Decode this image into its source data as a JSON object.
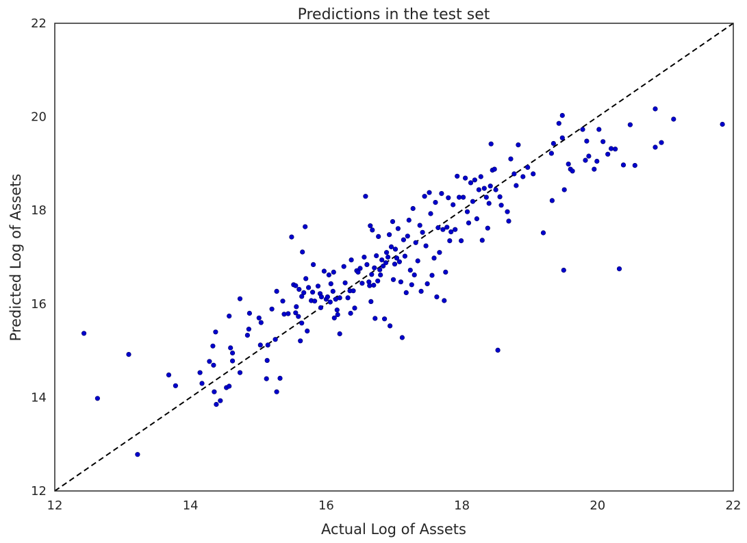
{
  "chart_data": {
    "type": "scatter",
    "title": "Predictions in the test set",
    "xlabel": "Actual Log of Assets",
    "ylabel": "Predicted Log of Assets",
    "xlim": [
      12,
      22
    ],
    "ylim": [
      12,
      22
    ],
    "xticks": [
      "12",
      "14",
      "16",
      "18",
      "20",
      "22"
    ],
    "yticks": [
      "12",
      "14",
      "16",
      "18",
      "20",
      "22"
    ],
    "grid": false,
    "reference_line": {
      "style": "dashed",
      "color": "#000000",
      "from": [
        12,
        12
      ],
      "to": [
        22,
        22
      ]
    },
    "point_color": "#0000cc",
    "points": [
      [
        12.43,
        15.37
      ],
      [
        12.63,
        13.98
      ],
      [
        13.09,
        14.92
      ],
      [
        13.22,
        12.78
      ],
      [
        13.68,
        14.48
      ],
      [
        13.78,
        14.25
      ],
      [
        14.14,
        14.53
      ],
      [
        14.17,
        14.3
      ],
      [
        14.28,
        14.77
      ],
      [
        14.33,
        15.1
      ],
      [
        14.34,
        14.69
      ],
      [
        14.37,
        15.4
      ],
      [
        14.35,
        14.12
      ],
      [
        14.38,
        13.85
      ],
      [
        14.44,
        13.93
      ],
      [
        14.53,
        14.21
      ],
      [
        14.57,
        15.74
      ],
      [
        14.57,
        14.24
      ],
      [
        14.59,
        15.06
      ],
      [
        14.62,
        14.78
      ],
      [
        14.62,
        14.95
      ],
      [
        14.73,
        16.11
      ],
      [
        14.73,
        14.53
      ],
      [
        14.84,
        15.33
      ],
      [
        14.86,
        15.46
      ],
      [
        14.87,
        15.8
      ],
      [
        15.01,
        15.7
      ],
      [
        15.03,
        15.12
      ],
      [
        15.04,
        15.6
      ],
      [
        15.12,
        14.4
      ],
      [
        15.13,
        14.79
      ],
      [
        15.14,
        15.12
      ],
      [
        15.2,
        15.89
      ],
      [
        15.25,
        15.24
      ],
      [
        15.27,
        14.12
      ],
      [
        15.27,
        16.27
      ],
      [
        15.32,
        14.41
      ],
      [
        15.36,
        16.06
      ],
      [
        15.38,
        15.78
      ],
      [
        15.44,
        15.79
      ],
      [
        15.49,
        17.43
      ],
      [
        15.52,
        16.41
      ],
      [
        15.55,
        16.39
      ],
      [
        15.55,
        15.81
      ],
      [
        15.56,
        15.94
      ],
      [
        15.59,
        15.73
      ],
      [
        15.6,
        16.31
      ],
      [
        15.62,
        15.21
      ],
      [
        15.64,
        15.59
      ],
      [
        15.64,
        16.16
      ],
      [
        15.65,
        17.11
      ],
      [
        15.67,
        16.24
      ],
      [
        15.69,
        17.65
      ],
      [
        15.7,
        16.54
      ],
      [
        15.72,
        15.42
      ],
      [
        15.74,
        16.35
      ],
      [
        15.78,
        16.07
      ],
      [
        15.8,
        16.25
      ],
      [
        15.81,
        16.84
      ],
      [
        15.83,
        16.06
      ],
      [
        15.88,
        16.38
      ],
      [
        15.91,
        16.22
      ],
      [
        15.92,
        15.92
      ],
      [
        15.93,
        16.15
      ],
      [
        15.97,
        16.7
      ],
      [
        16.0,
        16.1
      ],
      [
        16.02,
        16.15
      ],
      [
        16.04,
        16.62
      ],
      [
        16.06,
        16.04
      ],
      [
        16.07,
        16.43
      ],
      [
        16.1,
        16.27
      ],
      [
        16.11,
        16.68
      ],
      [
        16.12,
        15.7
      ],
      [
        16.14,
        16.1
      ],
      [
        16.16,
        15.87
      ],
      [
        16.17,
        15.77
      ],
      [
        16.2,
        15.36
      ],
      [
        16.2,
        16.13
      ],
      [
        16.26,
        16.8
      ],
      [
        16.28,
        16.45
      ],
      [
        16.32,
        16.13
      ],
      [
        16.35,
        16.28
      ],
      [
        16.36,
        15.8
      ],
      [
        16.37,
        16.94
      ],
      [
        16.4,
        16.28
      ],
      [
        16.42,
        15.91
      ],
      [
        16.45,
        16.71
      ],
      [
        16.47,
        16.68
      ],
      [
        16.5,
        16.76
      ],
      [
        16.53,
        16.44
      ],
      [
        16.56,
        17.0
      ],
      [
        16.58,
        18.3
      ],
      [
        16.6,
        16.84
      ],
      [
        16.63,
        16.47
      ],
      [
        16.64,
        16.39
      ],
      [
        16.65,
        17.67
      ],
      [
        16.66,
        16.05
      ],
      [
        16.67,
        16.63
      ],
      [
        16.68,
        17.58
      ],
      [
        16.7,
        16.4
      ],
      [
        16.71,
        16.77
      ],
      [
        16.72,
        15.69
      ],
      [
        16.74,
        17.03
      ],
      [
        16.76,
        16.49
      ],
      [
        16.77,
        17.44
      ],
      [
        16.79,
        16.73
      ],
      [
        16.8,
        16.62
      ],
      [
        16.82,
        16.94
      ],
      [
        16.84,
        16.81
      ],
      [
        16.86,
        15.68
      ],
      [
        16.88,
        16.88
      ],
      [
        16.89,
        17.1
      ],
      [
        16.91,
        17.0
      ],
      [
        16.93,
        17.48
      ],
      [
        16.94,
        15.53
      ],
      [
        16.96,
        17.22
      ],
      [
        16.98,
        17.76
      ],
      [
        16.99,
        16.52
      ],
      [
        17.01,
        16.85
      ],
      [
        17.02,
        17.17
      ],
      [
        17.04,
        16.98
      ],
      [
        17.06,
        17.61
      ],
      [
        17.08,
        16.9
      ],
      [
        17.1,
        16.47
      ],
      [
        17.12,
        15.28
      ],
      [
        17.14,
        17.37
      ],
      [
        17.16,
        17.02
      ],
      [
        17.18,
        16.24
      ],
      [
        17.2,
        17.45
      ],
      [
        17.22,
        17.79
      ],
      [
        17.24,
        16.72
      ],
      [
        17.26,
        16.41
      ],
      [
        17.28,
        18.04
      ],
      [
        17.3,
        16.62
      ],
      [
        17.32,
        17.31
      ],
      [
        17.35,
        16.92
      ],
      [
        17.38,
        17.68
      ],
      [
        17.4,
        16.27
      ],
      [
        17.42,
        17.53
      ],
      [
        17.45,
        18.3
      ],
      [
        17.47,
        17.24
      ],
      [
        17.49,
        16.43
      ],
      [
        17.52,
        18.38
      ],
      [
        17.54,
        17.93
      ],
      [
        17.56,
        16.61
      ],
      [
        17.59,
        16.98
      ],
      [
        17.61,
        18.17
      ],
      [
        17.63,
        16.15
      ],
      [
        17.65,
        17.63
      ],
      [
        17.67,
        17.1
      ],
      [
        17.7,
        18.36
      ],
      [
        17.72,
        17.59
      ],
      [
        17.74,
        16.07
      ],
      [
        17.76,
        16.68
      ],
      [
        17.78,
        17.64
      ],
      [
        17.8,
        18.27
      ],
      [
        17.82,
        17.35
      ],
      [
        17.84,
        17.54
      ],
      [
        17.87,
        18.12
      ],
      [
        17.9,
        17.59
      ],
      [
        17.93,
        18.73
      ],
      [
        17.96,
        18.28
      ],
      [
        17.99,
        17.35
      ],
      [
        18.02,
        18.28
      ],
      [
        18.05,
        18.69
      ],
      [
        18.08,
        17.97
      ],
      [
        18.1,
        17.73
      ],
      [
        18.13,
        18.59
      ],
      [
        18.16,
        18.19
      ],
      [
        18.19,
        18.65
      ],
      [
        18.22,
        17.82
      ],
      [
        18.25,
        18.44
      ],
      [
        18.28,
        18.72
      ],
      [
        18.3,
        17.36
      ],
      [
        18.33,
        18.47
      ],
      [
        18.36,
        18.28
      ],
      [
        18.38,
        17.62
      ],
      [
        18.4,
        18.15
      ],
      [
        18.42,
        18.52
      ],
      [
        18.43,
        19.42
      ],
      [
        18.45,
        18.86
      ],
      [
        18.48,
        18.88
      ],
      [
        18.5,
        18.44
      ],
      [
        18.53,
        15.01
      ],
      [
        18.56,
        18.29
      ],
      [
        18.58,
        18.11
      ],
      [
        18.67,
        17.97
      ],
      [
        18.69,
        17.77
      ],
      [
        18.72,
        19.1
      ],
      [
        18.77,
        18.78
      ],
      [
        18.8,
        18.53
      ],
      [
        18.83,
        19.4
      ],
      [
        18.9,
        18.72
      ],
      [
        18.97,
        18.92
      ],
      [
        19.05,
        18.78
      ],
      [
        19.2,
        17.52
      ],
      [
        19.32,
        19.22
      ],
      [
        19.33,
        18.21
      ],
      [
        19.35,
        19.43
      ],
      [
        19.43,
        19.86
      ],
      [
        19.48,
        20.03
      ],
      [
        19.48,
        19.55
      ],
      [
        19.5,
        16.72
      ],
      [
        19.51,
        18.44
      ],
      [
        19.57,
        18.99
      ],
      [
        19.6,
        18.88
      ],
      [
        19.63,
        18.84
      ],
      [
        19.78,
        19.73
      ],
      [
        19.82,
        19.07
      ],
      [
        19.84,
        19.48
      ],
      [
        19.87,
        19.16
      ],
      [
        19.95,
        18.88
      ],
      [
        19.99,
        19.05
      ],
      [
        20.02,
        19.73
      ],
      [
        20.08,
        19.47
      ],
      [
        20.15,
        19.2
      ],
      [
        20.2,
        19.32
      ],
      [
        20.26,
        19.31
      ],
      [
        20.32,
        16.75
      ],
      [
        20.38,
        18.97
      ],
      [
        20.48,
        19.83
      ],
      [
        20.55,
        18.96
      ],
      [
        20.85,
        19.35
      ],
      [
        20.85,
        20.17
      ],
      [
        20.94,
        19.45
      ],
      [
        21.12,
        19.95
      ],
      [
        21.84,
        19.84
      ]
    ]
  }
}
